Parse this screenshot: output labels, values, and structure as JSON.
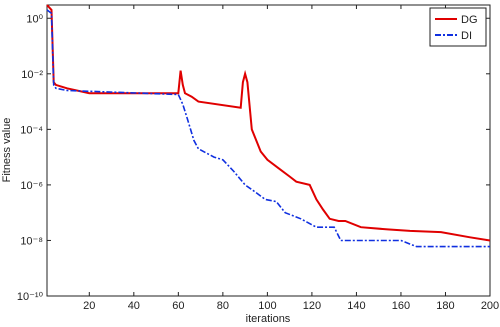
{
  "chart_data": {
    "type": "line",
    "xlabel": "iterations",
    "ylabel": "Fitness value",
    "log_y": true,
    "legend": "upper right",
    "xlim": [
      1,
      200
    ],
    "xticks": [
      20,
      40,
      60,
      80,
      100,
      120,
      140,
      160,
      180,
      200
    ],
    "ylim": [
      1e-10,
      3
    ],
    "yticks": [
      {
        "value": 1e-10,
        "label": "10⁻¹⁰"
      },
      {
        "value": 1e-08,
        "label": "10⁻⁸"
      },
      {
        "value": 1e-06,
        "label": "10⁻⁶"
      },
      {
        "value": 0.0001,
        "label": "10⁻⁴"
      },
      {
        "value": 0.01,
        "label": "10⁻²"
      },
      {
        "value": 1,
        "label": "10⁰"
      }
    ],
    "series": [
      {
        "name": "DG",
        "color": "#e00000",
        "dash": false,
        "x": [
          1,
          3,
          4,
          5,
          10,
          20,
          60,
          61,
          62,
          63,
          66,
          69,
          88,
          89,
          90,
          91,
          93,
          97,
          100,
          105,
          110,
          113,
          119,
          122,
          125,
          128,
          132,
          135,
          142,
          154,
          164,
          178,
          191,
          200
        ],
        "values": [
          3,
          2,
          0.005,
          0.004,
          0.003,
          0.002,
          0.002,
          0.013,
          0.004,
          0.002,
          0.0015,
          0.001,
          0.0006,
          0.005,
          0.01,
          0.005,
          0.0001,
          1.6e-05,
          8e-06,
          4e-06,
          2e-06,
          1.3e-06,
          1e-06,
          3e-07,
          1.3e-07,
          6e-08,
          5e-08,
          5e-08,
          3e-08,
          2.5e-08,
          2.2e-08,
          2e-08,
          1.3e-08,
          1e-08
        ]
      },
      {
        "name": "DI",
        "color": "#1030e0",
        "dash": true,
        "x": [
          1,
          3,
          4,
          5,
          10,
          60,
          62,
          64,
          67,
          69,
          76,
          80,
          85,
          90,
          94,
          99,
          104,
          108,
          115,
          122,
          130,
          133,
          160,
          167,
          200
        ],
        "values": [
          2,
          1.5,
          0.004,
          0.003,
          0.0025,
          0.0018,
          0.0008,
          0.00025,
          4e-05,
          2e-05,
          1e-05,
          8e-06,
          3e-06,
          1e-06,
          6e-07,
          3e-07,
          2.5e-07,
          1e-07,
          6e-08,
          3e-08,
          3e-08,
          1e-08,
          1e-08,
          6e-09,
          6e-09
        ]
      }
    ]
  }
}
